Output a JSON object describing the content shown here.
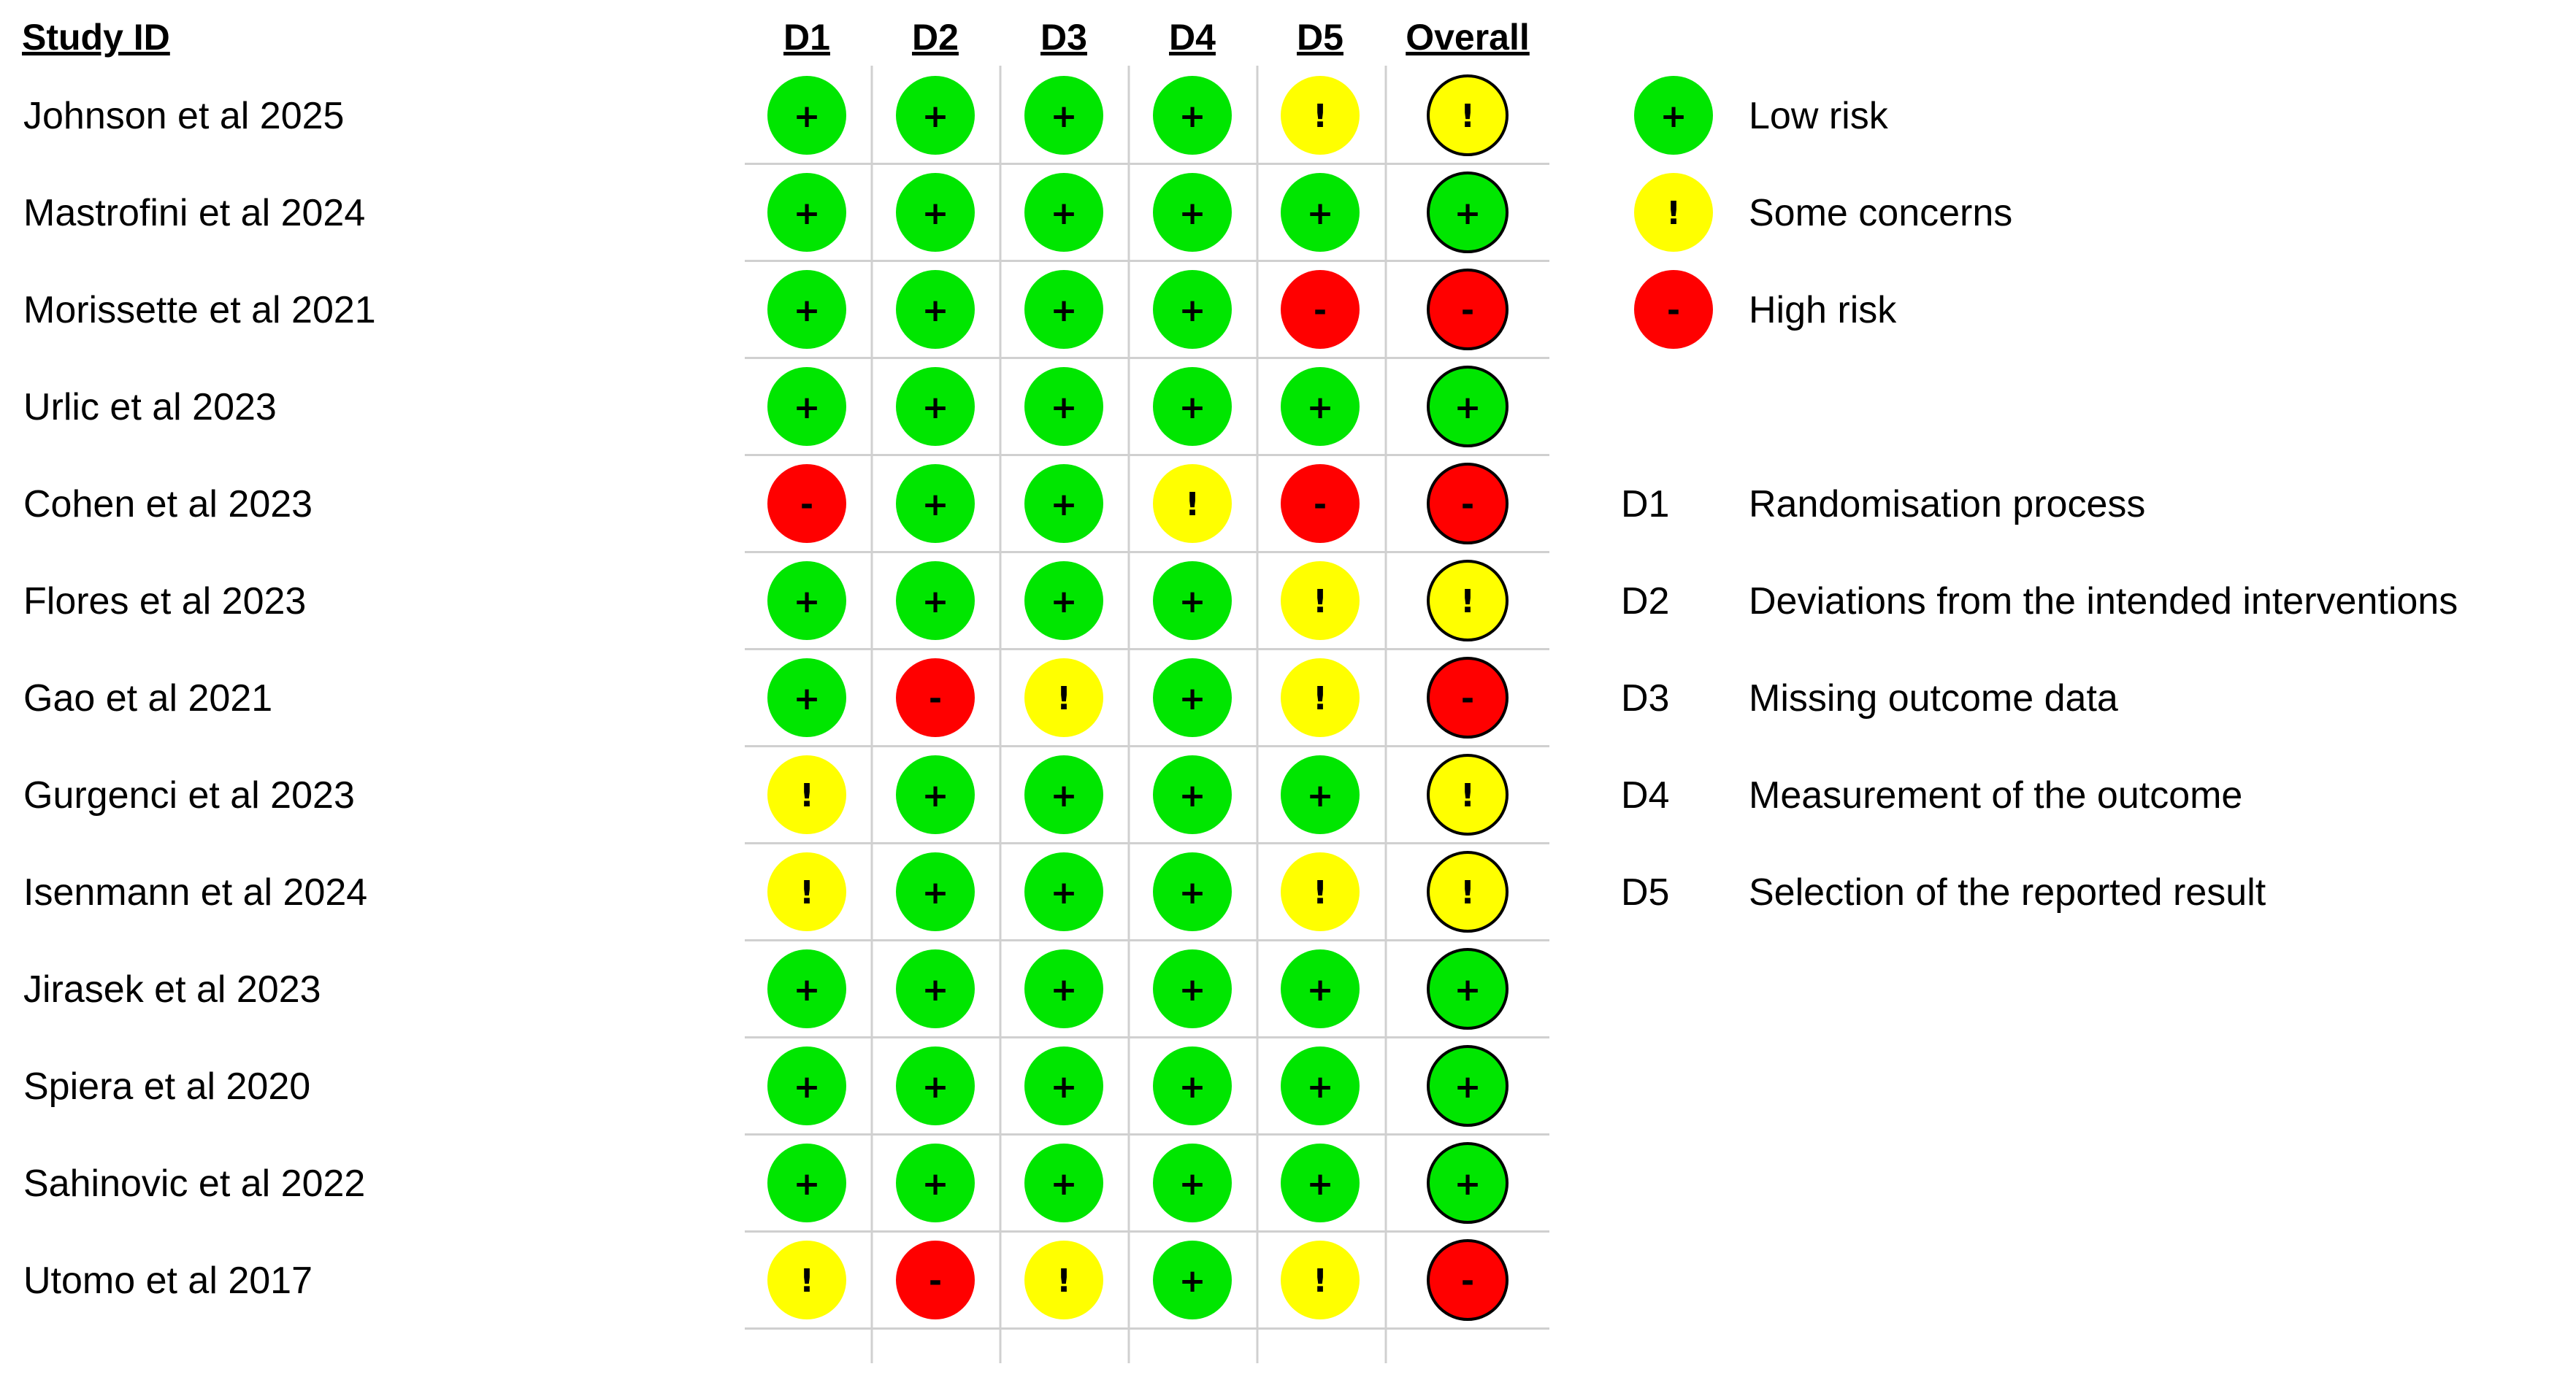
{
  "chart_data": {
    "type": "table",
    "study_header": "Study ID",
    "domains": [
      "D1",
      "D2",
      "D3",
      "D4",
      "D5"
    ],
    "overall_label": "Overall",
    "studies": [
      {
        "name": "Johnson et al 2025",
        "d": [
          "+",
          "+",
          "+",
          "+",
          "!"
        ],
        "overall": "!"
      },
      {
        "name": "Mastrofini et al 2024",
        "d": [
          "+",
          "+",
          "+",
          "+",
          "+"
        ],
        "overall": "+"
      },
      {
        "name": "Morissette et al 2021",
        "d": [
          "+",
          "+",
          "+",
          "+",
          "-"
        ],
        "overall": "-"
      },
      {
        "name": "Urlic et al 2023",
        "d": [
          "+",
          "+",
          "+",
          "+",
          "+"
        ],
        "overall": "+"
      },
      {
        "name": "Cohen et al 2023",
        "d": [
          "-",
          "+",
          "+",
          "!",
          "-"
        ],
        "overall": "-"
      },
      {
        "name": "Flores et al 2023",
        "d": [
          "+",
          "+",
          "+",
          "+",
          "!"
        ],
        "overall": "!"
      },
      {
        "name": "Gao et al 2021",
        "d": [
          "+",
          "-",
          "!",
          "+",
          "!"
        ],
        "overall": "-"
      },
      {
        "name": "Gurgenci et al 2023",
        "d": [
          "!",
          "+",
          "+",
          "+",
          "+"
        ],
        "overall": "!"
      },
      {
        "name": "Isenmann et al 2024",
        "d": [
          "!",
          "+",
          "+",
          "+",
          "!"
        ],
        "overall": "!"
      },
      {
        "name": "Jirasek et al 2023",
        "d": [
          "+",
          "+",
          "+",
          "+",
          "+"
        ],
        "overall": "+"
      },
      {
        "name": "Spiera et al 2020",
        "d": [
          "+",
          "+",
          "+",
          "+",
          "+"
        ],
        "overall": "+"
      },
      {
        "name": "Sahinovic et al 2022",
        "d": [
          "+",
          "+",
          "+",
          "+",
          "+"
        ],
        "overall": "+"
      },
      {
        "name": "Utomo et al 2017",
        "d": [
          "!",
          "-",
          "!",
          "+",
          "!"
        ],
        "overall": "-"
      }
    ],
    "judgements": [
      {
        "symbol": "+",
        "label": "Low risk",
        "color": "#00e600"
      },
      {
        "symbol": "!",
        "label": "Some concerns",
        "color": "#ffff00"
      },
      {
        "symbol": "-",
        "label": "High risk",
        "color": "#ff0000"
      }
    ],
    "domain_key": [
      {
        "code": "D1",
        "description": "Randomisation process"
      },
      {
        "code": "D2",
        "description": "Deviations from the intended interventions"
      },
      {
        "code": "D3",
        "description": "Missing outcome data"
      },
      {
        "code": "D4",
        "description": "Measurement of the outcome"
      },
      {
        "code": "D5",
        "description": "Selection of the reported result"
      }
    ]
  }
}
